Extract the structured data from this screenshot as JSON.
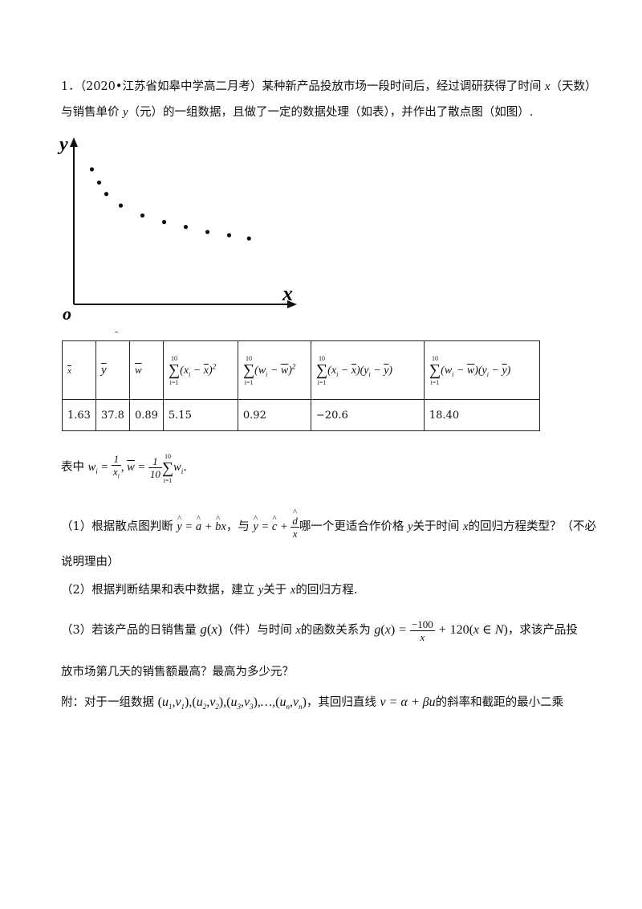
{
  "problem": {
    "number": "1．",
    "source": "（2020•江苏省如皋中学高二月考）",
    "line1_rest": "某种新产品投放市场一段时间后，经过调研获得了时间",
    "var_x": "x",
    "days": "（天数）",
    "line2_a": "与销售单价",
    "var_y": "y",
    "yuan": "（元）的一组数据，且做了一定的数据处理（如表），并作出了散点图（如图）."
  },
  "scatter": {
    "axis_y_label": "y",
    "axis_x_label": "x",
    "origin_label": "o",
    "points": [
      [
        1,
        8.2
      ],
      [
        1.4,
        7.4
      ],
      [
        1.8,
        6.7
      ],
      [
        2.6,
        6.0
      ],
      [
        3.8,
        5.4
      ],
      [
        5.0,
        5.0
      ],
      [
        6.2,
        4.7
      ],
      [
        7.4,
        4.4
      ],
      [
        8.6,
        4.2
      ],
      [
        9.7,
        4.0
      ]
    ]
  },
  "table": {
    "headers": [
      "x̄",
      "ȳ",
      "w̄",
      "Σ(xi−x̄)²",
      "Σ(wi−w̄)²",
      "Σ(xi−x̄)(yi−ȳ)",
      "Σ(wi−w̄)(yi−ȳ)"
    ],
    "values": [
      "1.63",
      "37.8",
      "0.89",
      "5.15",
      "0.92",
      "−20.6",
      "18.40"
    ],
    "sum_upper": "10",
    "sum_lower": "i=1"
  },
  "note": {
    "prefix": "表中",
    "w_def": "wi = 1/xi, w̄ = (1/10)Σwi",
    "period": "."
  },
  "q1": {
    "label": "（1）根据散点图判断",
    "model_a": "ŷ = â + b̂x",
    "mid": "，与",
    "model_b": "ŷ = ĉ + d̂/x",
    "rest": "哪一个更适合作价格",
    "rest2": "关于时间",
    "rest3": "的回归方程类型？（不必",
    "line2": "说明理由）"
  },
  "q2": {
    "label": "（2）根据判断结果和表中数据，建立",
    "mid": "关于",
    "rest": "的回归方程."
  },
  "q3": {
    "label": "（3）若该产品的日销售量",
    "g": "g(x)",
    "unit": "（件）与时间",
    "mid": "的函数关系为",
    "formula": "g(x) = −100/x + 120 (x∈N)",
    "rest": "，求该产品投",
    "line2": "放市场第几天的销售额最高？最高为多少元？"
  },
  "appendix": {
    "label": "附：对于一组数据",
    "data": "(u1,v1),(u2,v2),(u3,v3),…,(un,vn)",
    "mid": "，其回归直线",
    "line": "v = α + βu",
    "rest": "的斜率和截距的最小二乘"
  }
}
